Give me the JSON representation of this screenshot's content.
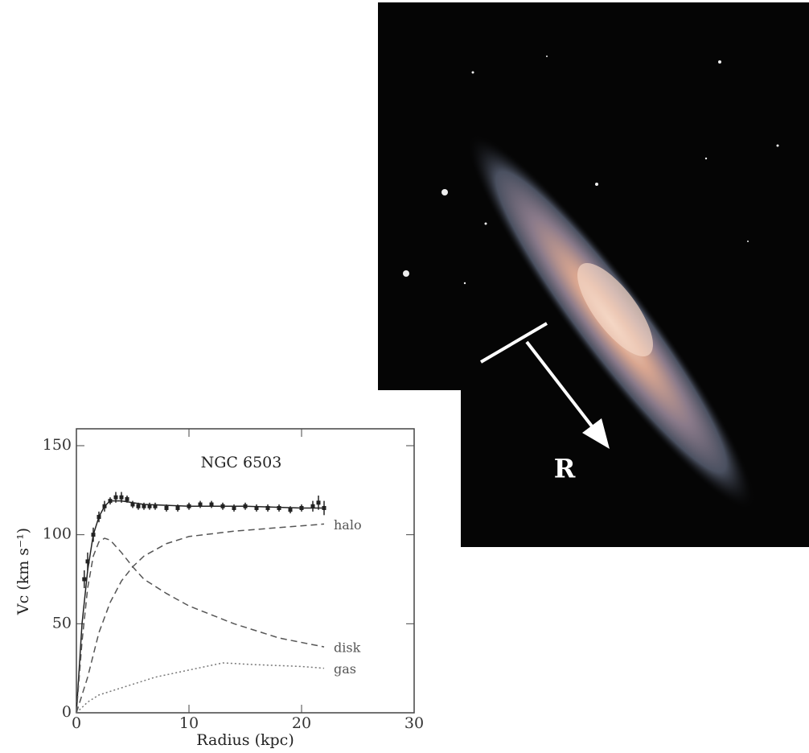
{
  "chart_data": {
    "type": "line",
    "title": "NGC 6503",
    "xlabel": "Radius (kpc)",
    "ylabel": "Vc (km s⁻¹)",
    "xlim": [
      0,
      30
    ],
    "ylim": [
      0,
      150
    ],
    "xticks": [
      0,
      10,
      20,
      30
    ],
    "yticks": [
      0,
      50,
      100,
      150
    ],
    "series": [
      {
        "style": "points",
        "color": "#222",
        "x": [
          0.7,
          1.0,
          1.5,
          2.0,
          2.5,
          3.0,
          3.5,
          4.0,
          4.5,
          5.0,
          5.5,
          6.0,
          6.5,
          7.0,
          8.0,
          9.0,
          10.0,
          11.0,
          12.0,
          13.0,
          14.0,
          15.0,
          16.0,
          17.0,
          18.0,
          19.0,
          20.0,
          21.0,
          21.5,
          22.0
        ],
        "values": [
          75,
          85,
          100,
          110,
          116,
          119,
          121,
          121,
          120,
          117,
          116,
          116,
          116,
          116,
          115,
          115,
          116,
          117,
          117,
          116,
          115,
          116,
          115,
          115,
          115,
          114,
          115,
          116,
          118,
          115
        ],
        "errors": [
          5,
          5,
          4,
          3,
          3,
          2,
          3,
          3,
          2,
          2,
          2,
          2,
          2,
          2,
          2,
          2,
          2,
          2,
          2,
          2,
          2,
          2,
          2,
          2,
          2,
          2,
          2,
          3,
          4,
          4
        ]
      },
      {
        "style": "solid",
        "color": "#222",
        "x": [
          0,
          0.5,
          1,
          1.5,
          2,
          2.5,
          3,
          4,
          6,
          10,
          15,
          20,
          22
        ],
        "values": [
          0,
          50,
          80,
          100,
          110,
          116,
          119,
          119,
          117,
          116,
          116,
          115,
          115
        ]
      },
      {
        "name": "halo",
        "style": "dashed",
        "color": "#555",
        "x": [
          0,
          1,
          2,
          3,
          4,
          5,
          6,
          8,
          10,
          14,
          18,
          22
        ],
        "values": [
          0,
          20,
          45,
          62,
          74,
          82,
          88,
          95,
          99,
          102,
          104,
          106
        ]
      },
      {
        "name": "disk",
        "style": "dashed",
        "color": "#555",
        "x": [
          0,
          0.5,
          1,
          1.5,
          2,
          2.5,
          3,
          4,
          5,
          6,
          8,
          10,
          14,
          18,
          22
        ],
        "values": [
          0,
          40,
          70,
          88,
          96,
          98,
          97,
          90,
          82,
          75,
          67,
          60,
          50,
          42,
          37
        ]
      },
      {
        "name": "gas",
        "style": "dotted",
        "color": "#777",
        "x": [
          0,
          1,
          2,
          3,
          4,
          5,
          7,
          10,
          13,
          16,
          20,
          22
        ],
        "values": [
          0,
          6,
          10,
          12,
          14,
          16,
          20,
          24,
          28,
          27,
          26,
          25
        ]
      }
    ]
  },
  "image": {
    "label": "R"
  }
}
